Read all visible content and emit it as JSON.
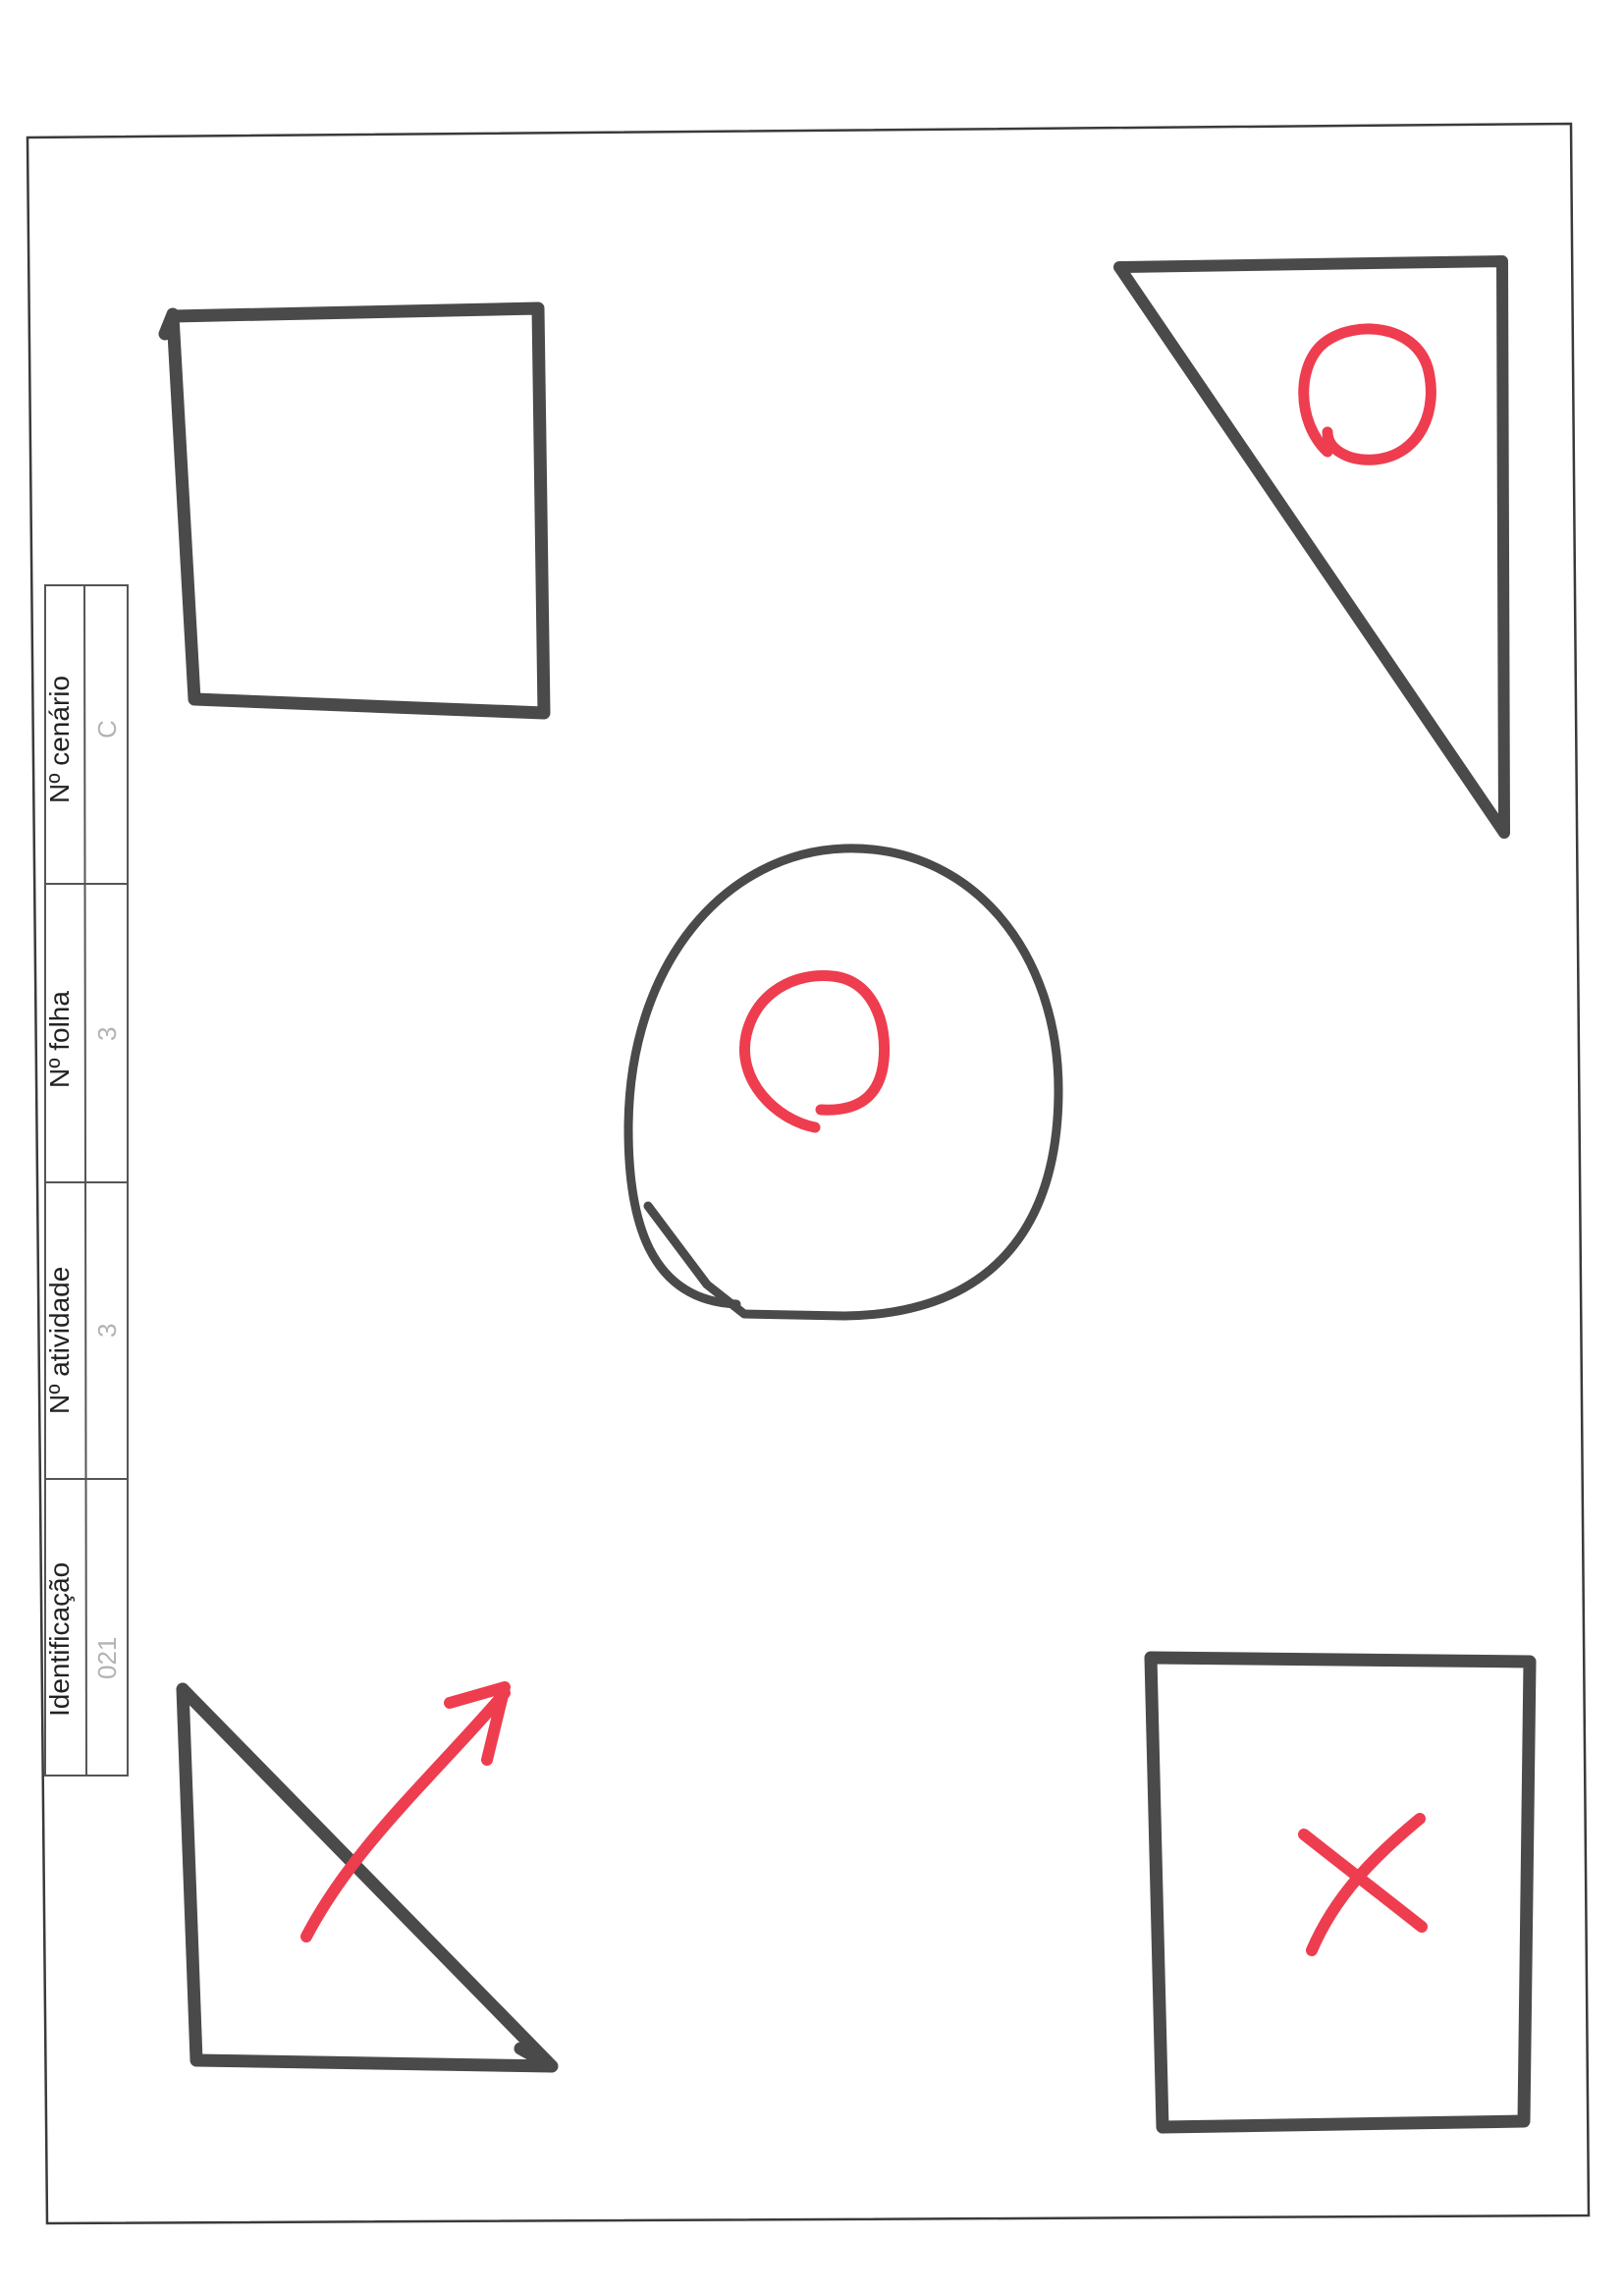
{
  "form": {
    "identificacao_label": "Identificação",
    "identificacao_value": "021",
    "atividade_label": "Nº atividade",
    "atividade_value": "3",
    "folha_label": "Nº folha",
    "folha_value": "3",
    "cenario_label": "Nº cenário",
    "cenario_value": "C"
  },
  "colors": {
    "frame": "#3a3a3a",
    "shape_ink": "#4a4a4a",
    "mark_ink": "#ee3d4f",
    "form_line": "#555555"
  },
  "sketch_elements": [
    {
      "name": "square",
      "position": "top-left",
      "mark": "none"
    },
    {
      "name": "triangle",
      "position": "top-right",
      "mark": "circle"
    },
    {
      "name": "circle",
      "position": "center",
      "mark": "circle"
    },
    {
      "name": "triangle",
      "position": "bottom-left",
      "mark": "arrow"
    },
    {
      "name": "square",
      "position": "bottom-right",
      "mark": "cross"
    }
  ]
}
